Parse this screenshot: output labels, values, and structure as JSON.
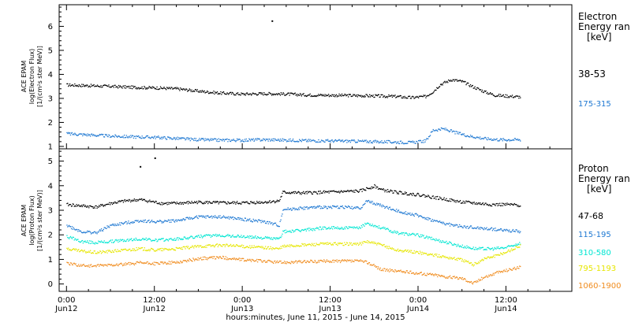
{
  "figure": {
    "xlabel": "hours:minutes, June 11, 2015 - June 14, 2015",
    "x_ticks": [
      {
        "t": 0,
        "line1": "0:00",
        "line2": "Jun12"
      },
      {
        "t": 12,
        "line1": "12:00",
        "line2": "Jun12"
      },
      {
        "t": 24,
        "line1": "0:00",
        "line2": "Jun13"
      },
      {
        "t": 36,
        "line1": "12:00",
        "line2": "Jun13"
      },
      {
        "t": 48,
        "line1": "0:00",
        "line2": "Jun14"
      },
      {
        "t": 60,
        "line1": "12:00",
        "line2": "Jun14"
      }
    ]
  },
  "chart_data": [
    {
      "type": "scatter",
      "panel": "electron",
      "ylabel_lines": [
        "ACE EPAM",
        "log(Electron Flux)",
        "[1/(cm²s ster MeV)]"
      ],
      "legend_title": [
        "Electron",
        "Energy ran",
        "[keV]"
      ],
      "xlim": [
        -1,
        69
      ],
      "ylim": [
        0.9,
        6.9
      ],
      "yticks": [
        1,
        2,
        3,
        4,
        5,
        6
      ],
      "series": [
        {
          "name": "38-53",
          "color": "#000000",
          "points": [
            [
              0,
              3.58
            ],
            [
              3,
              3.55
            ],
            [
              6,
              3.52
            ],
            [
              9,
              3.48
            ],
            [
              12,
              3.46
            ],
            [
              15,
              3.42
            ],
            [
              18,
              3.32
            ],
            [
              21,
              3.24
            ],
            [
              24,
              3.2
            ],
            [
              27,
              3.22
            ],
            [
              30,
              3.2
            ],
            [
              33,
              3.16
            ],
            [
              36,
              3.15
            ],
            [
              39,
              3.14
            ],
            [
              42,
              3.12
            ],
            [
              45,
              3.1
            ],
            [
              47,
              3.05
            ],
            [
              49,
              3.1
            ],
            [
              50,
              3.3
            ],
            [
              51,
              3.6
            ],
            [
              52.5,
              3.8
            ],
            [
              54,
              3.72
            ],
            [
              55.5,
              3.5
            ],
            [
              57,
              3.3
            ],
            [
              58.5,
              3.15
            ],
            [
              60,
              3.12
            ],
            [
              62,
              3.08
            ]
          ]
        },
        {
          "name": "175-315",
          "color": "#1e78d2",
          "points": [
            [
              0,
              1.55
            ],
            [
              3,
              1.5
            ],
            [
              6,
              1.45
            ],
            [
              9,
              1.42
            ],
            [
              12,
              1.4
            ],
            [
              15,
              1.35
            ],
            [
              18,
              1.3
            ],
            [
              21,
              1.28
            ],
            [
              24,
              1.28
            ],
            [
              27,
              1.3
            ],
            [
              30,
              1.28
            ],
            [
              33,
              1.26
            ],
            [
              36,
              1.25
            ],
            [
              39,
              1.24
            ],
            [
              42,
              1.22
            ],
            [
              45,
              1.2
            ],
            [
              47,
              1.18
            ],
            [
              49,
              1.25
            ],
            [
              50,
              1.7
            ],
            [
              51.5,
              1.75
            ],
            [
              53,
              1.6
            ],
            [
              55,
              1.45
            ],
            [
              57,
              1.35
            ],
            [
              59,
              1.3
            ],
            [
              62,
              1.3
            ]
          ]
        }
      ],
      "annotations": [
        {
          "x": 28,
          "y": 6.25,
          "color": "#000000"
        }
      ]
    },
    {
      "type": "scatter",
      "panel": "proton",
      "ylabel_lines": [
        "ACE EPAM",
        "log(Proton Flux)",
        "[1/(cm²s ster MeV)]"
      ],
      "legend_title": [
        "Proton",
        "Energy ran",
        "[keV]"
      ],
      "xlim": [
        -1,
        69
      ],
      "ylim": [
        -0.3,
        5.5
      ],
      "yticks": [
        0,
        1,
        2,
        3,
        4,
        5
      ],
      "series": [
        {
          "name": "47-68",
          "color": "#000000",
          "points": [
            [
              0,
              3.25
            ],
            [
              2,
              3.2
            ],
            [
              4,
              3.15
            ],
            [
              6,
              3.3
            ],
            [
              8,
              3.4
            ],
            [
              10,
              3.45
            ],
            [
              12,
              3.35
            ],
            [
              13,
              3.3
            ],
            [
              15,
              3.3
            ],
            [
              18,
              3.35
            ],
            [
              21,
              3.32
            ],
            [
              24,
              3.32
            ],
            [
              27,
              3.35
            ],
            [
              29,
              3.4
            ],
            [
              29.5,
              3.75
            ],
            [
              32,
              3.72
            ],
            [
              35,
              3.75
            ],
            [
              38,
              3.78
            ],
            [
              40,
              3.8
            ],
            [
              42,
              4.0
            ],
            [
              43,
              3.85
            ],
            [
              45,
              3.75
            ],
            [
              48,
              3.65
            ],
            [
              50,
              3.55
            ],
            [
              52,
              3.45
            ],
            [
              54,
              3.35
            ],
            [
              56,
              3.3
            ],
            [
              58,
              3.25
            ],
            [
              60,
              3.25
            ],
            [
              62,
              3.22
            ]
          ]
        },
        {
          "name": "115-195",
          "color": "#1e78d2",
          "points": [
            [
              0,
              2.4
            ],
            [
              2,
              2.15
            ],
            [
              4,
              2.1
            ],
            [
              6,
              2.4
            ],
            [
              8,
              2.5
            ],
            [
              10,
              2.6
            ],
            [
              12,
              2.55
            ],
            [
              15,
              2.6
            ],
            [
              18,
              2.75
            ],
            [
              21,
              2.75
            ],
            [
              24,
              2.65
            ],
            [
              27,
              2.55
            ],
            [
              29,
              2.4
            ],
            [
              29.5,
              3.05
            ],
            [
              32,
              3.1
            ],
            [
              35,
              3.15
            ],
            [
              38,
              3.15
            ],
            [
              40,
              3.1
            ],
            [
              41,
              3.4
            ],
            [
              43,
              3.2
            ],
            [
              45,
              3.0
            ],
            [
              48,
              2.8
            ],
            [
              50,
              2.6
            ],
            [
              52,
              2.45
            ],
            [
              54,
              2.35
            ],
            [
              56,
              2.3
            ],
            [
              58,
              2.25
            ],
            [
              60,
              2.2
            ],
            [
              62,
              2.15
            ]
          ]
        },
        {
          "name": "310-580",
          "color": "#00e6d2",
          "points": [
            [
              0,
              1.95
            ],
            [
              2,
              1.75
            ],
            [
              4,
              1.7
            ],
            [
              6,
              1.75
            ],
            [
              8,
              1.8
            ],
            [
              10,
              1.85
            ],
            [
              12,
              1.8
            ],
            [
              15,
              1.85
            ],
            [
              18,
              1.95
            ],
            [
              21,
              2.0
            ],
            [
              24,
              1.95
            ],
            [
              27,
              1.9
            ],
            [
              29,
              1.85
            ],
            [
              29.5,
              2.15
            ],
            [
              32,
              2.2
            ],
            [
              35,
              2.3
            ],
            [
              38,
              2.3
            ],
            [
              40,
              2.3
            ],
            [
              41,
              2.5
            ],
            [
              43,
              2.3
            ],
            [
              45,
              2.1
            ],
            [
              48,
              2.0
            ],
            [
              50,
              1.85
            ],
            [
              52,
              1.7
            ],
            [
              54,
              1.55
            ],
            [
              56,
              1.45
            ],
            [
              58,
              1.45
            ],
            [
              60,
              1.5
            ],
            [
              62,
              1.7
            ]
          ]
        },
        {
          "name": "795-1193",
          "color": "#e6e600",
          "points": [
            [
              0,
              1.45
            ],
            [
              2,
              1.35
            ],
            [
              4,
              1.3
            ],
            [
              6,
              1.35
            ],
            [
              8,
              1.4
            ],
            [
              10,
              1.45
            ],
            [
              12,
              1.4
            ],
            [
              15,
              1.45
            ],
            [
              18,
              1.55
            ],
            [
              21,
              1.6
            ],
            [
              24,
              1.55
            ],
            [
              27,
              1.5
            ],
            [
              29,
              1.45
            ],
            [
              29.5,
              1.55
            ],
            [
              32,
              1.6
            ],
            [
              35,
              1.65
            ],
            [
              38,
              1.65
            ],
            [
              40,
              1.65
            ],
            [
              41,
              1.75
            ],
            [
              43,
              1.6
            ],
            [
              45,
              1.4
            ],
            [
              48,
              1.3
            ],
            [
              50,
              1.2
            ],
            [
              52,
              1.1
            ],
            [
              54,
              1.0
            ],
            [
              55.5,
              0.8
            ],
            [
              57,
              1.05
            ],
            [
              59,
              1.2
            ],
            [
              61,
              1.45
            ],
            [
              62,
              1.6
            ]
          ]
        },
        {
          "name": "1060-1900",
          "color": "#f08c1e",
          "points": [
            [
              0,
              0.85
            ],
            [
              2,
              0.78
            ],
            [
              4,
              0.75
            ],
            [
              6,
              0.8
            ],
            [
              8,
              0.82
            ],
            [
              10,
              0.88
            ],
            [
              12,
              0.85
            ],
            [
              15,
              0.9
            ],
            [
              18,
              1.05
            ],
            [
              21,
              1.1
            ],
            [
              24,
              1.0
            ],
            [
              27,
              0.95
            ],
            [
              29,
              0.9
            ],
            [
              32,
              0.92
            ],
            [
              35,
              0.95
            ],
            [
              38,
              0.95
            ],
            [
              40,
              0.95
            ],
            [
              41,
              0.9
            ],
            [
              43,
              0.6
            ],
            [
              45,
              0.55
            ],
            [
              48,
              0.45
            ],
            [
              50,
              0.4
            ],
            [
              52,
              0.3
            ],
            [
              54,
              0.25
            ],
            [
              55.5,
              0.05
            ],
            [
              57,
              0.3
            ],
            [
              59,
              0.5
            ],
            [
              61,
              0.65
            ],
            [
              62,
              0.7
            ]
          ]
        }
      ],
      "annotations": [
        {
          "x": 10,
          "y": 4.8,
          "color": "#000000"
        },
        {
          "x": 12,
          "y": 5.15,
          "color": "#000000"
        }
      ]
    }
  ]
}
